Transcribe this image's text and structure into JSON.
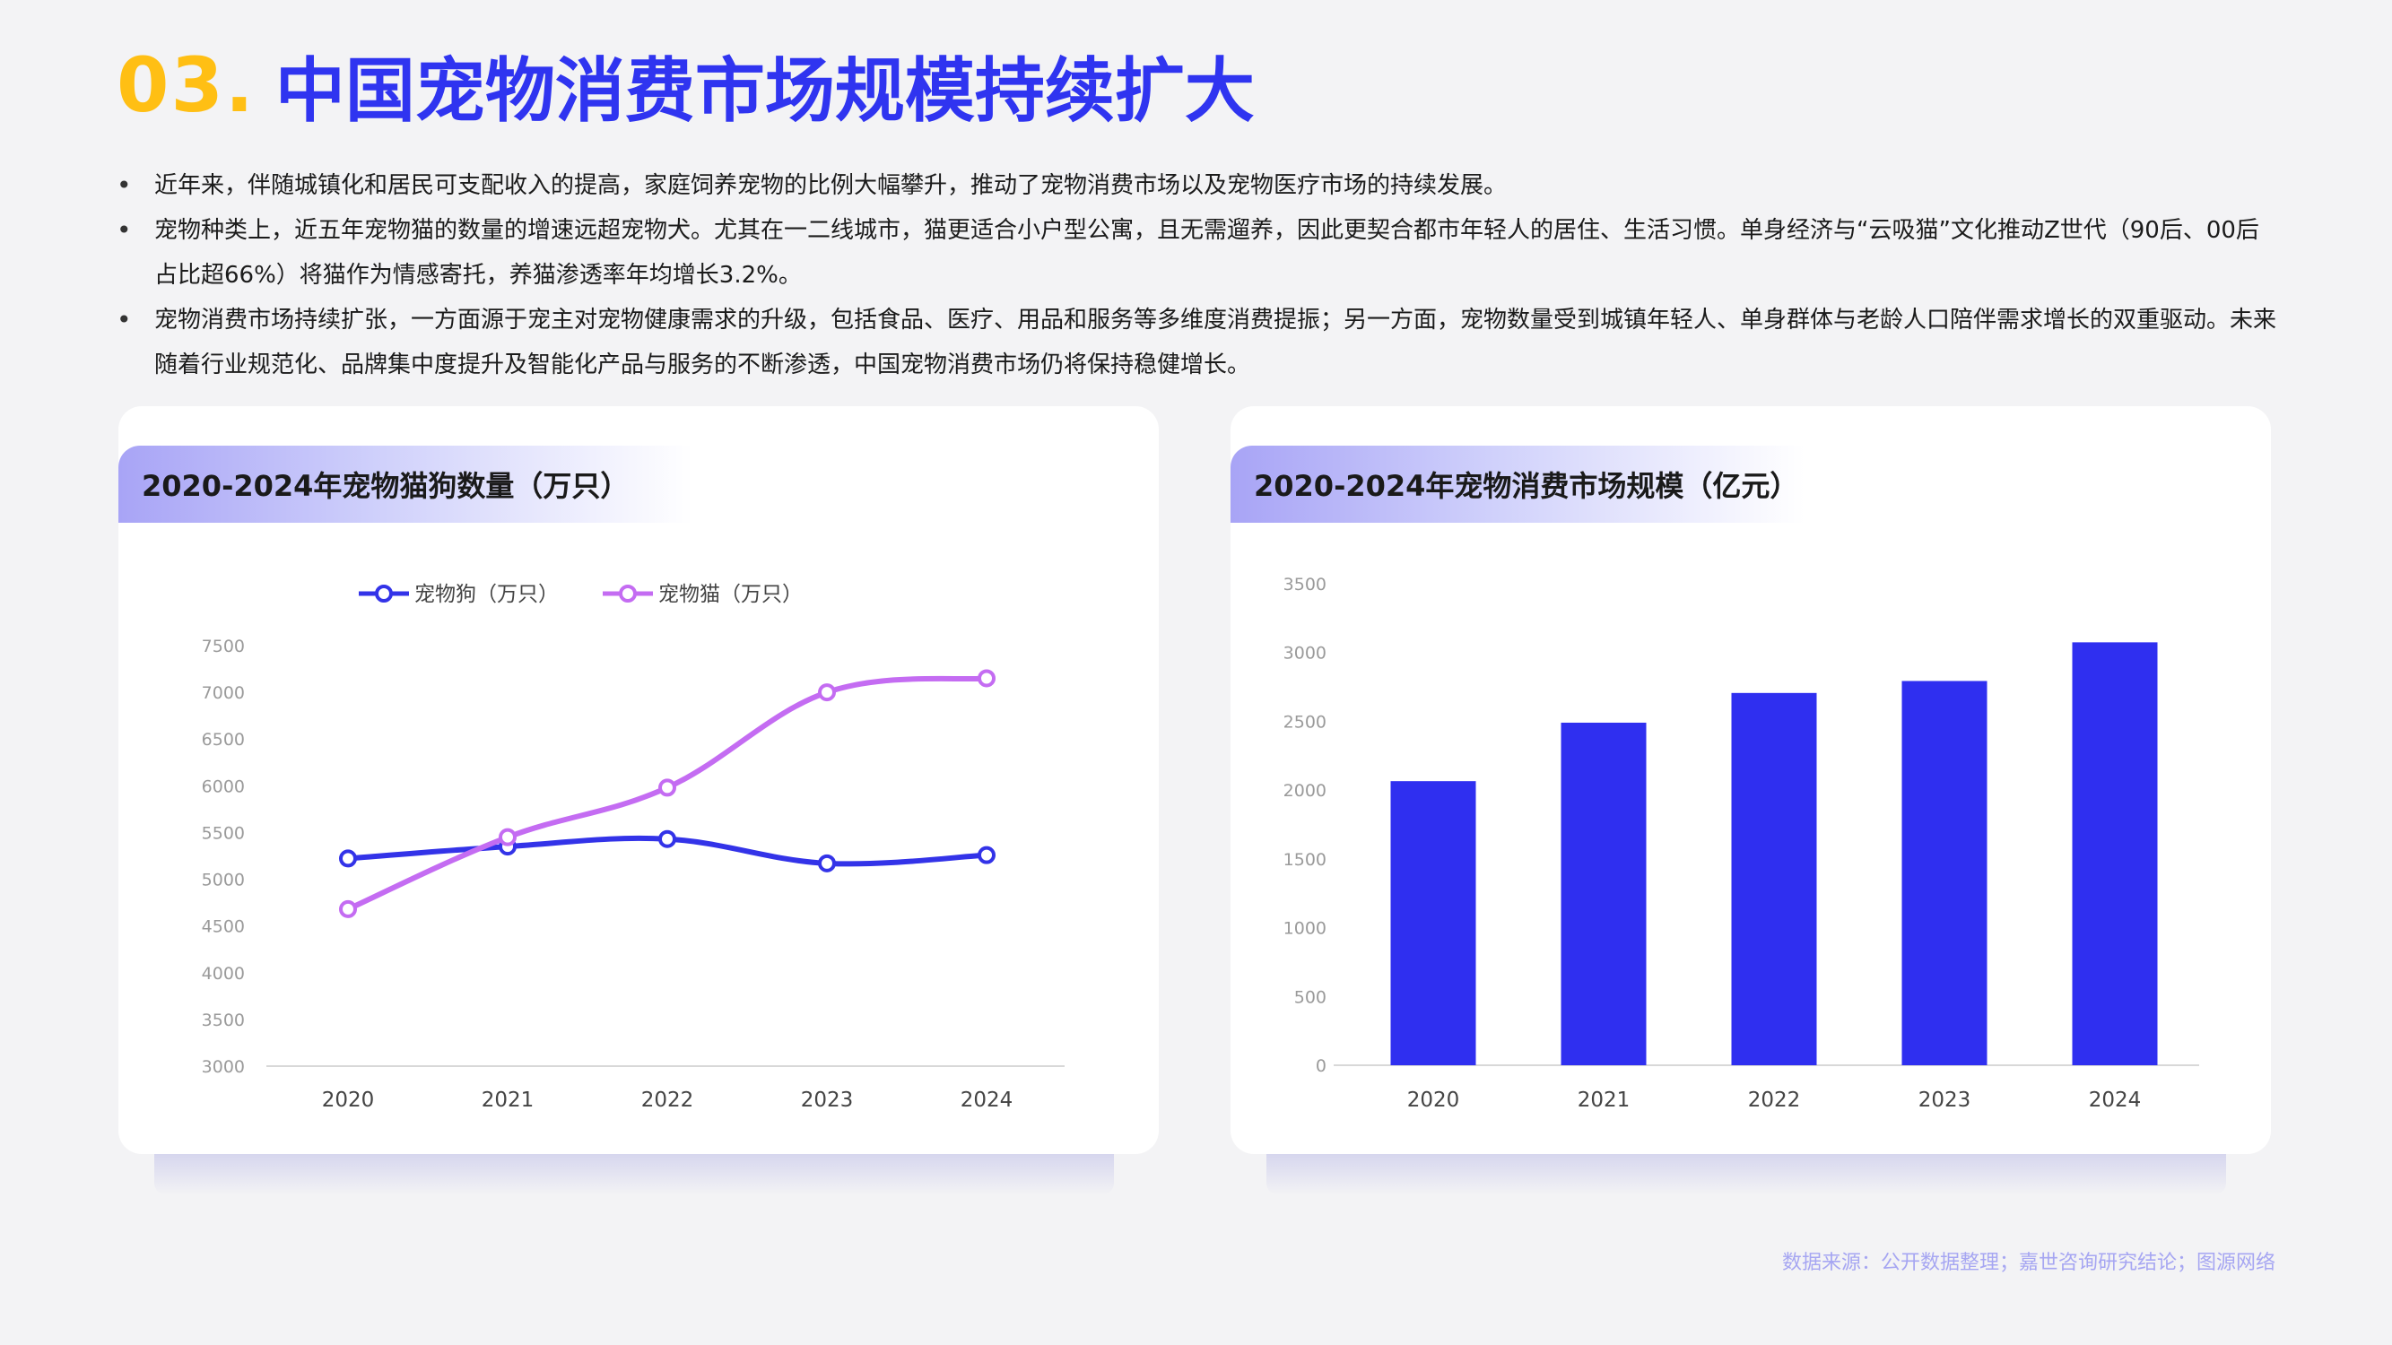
{
  "header": {
    "number": "03.",
    "title": "中国宠物消费市场规模持续扩大"
  },
  "bullets": [
    "近年来，伴随城镇化和居民可支配收入的提高，家庭饲养宠物的比例大幅攀升，推动了宠物消费市场以及宠物医疗市场的持续发展。",
    "宠物种类上，近五年宠物猫的数量的增速远超宠物犬。尤其在一二线城市，猫更适合小户型公寓，且无需遛养，因此更契合都市年轻人的居住、生活习惯。单身经济与“云吸猫”文化推动Z世代（90后、00后占比超66%）将猫作为情感寄托，养猫渗透率年均增长3.2%。",
    "宠物消费市场持续扩张，一方面源于宠主对宠物健康需求的升级，包括食品、医疗、用品和服务等多维度消费提振；另一方面，宠物数量受到城镇年轻人、单身群体与老龄人口陪伴需求增长的双重驱动。未来随着行业规范化、品牌集中度提升及智能化产品与服务的不断渗透，中国宠物消费市场仍将保持稳健增长。"
  ],
  "colors": {
    "accent_yellow": "#ffbf14",
    "title_blue": "#2f34f0",
    "dog_line": "#3333e8",
    "cat_line": "#c46cf2",
    "bar": "#2f2ff0"
  },
  "source": "数据来源：公开数据整理；嘉世咨询研究结论；图源网络",
  "chart_data": [
    {
      "type": "line",
      "title": "2020-2024年宠物猫狗数量（万只）",
      "x": [
        "2020",
        "2021",
        "2022",
        "2023",
        "2024"
      ],
      "series": [
        {
          "name": "宠物狗（万只）",
          "values": [
            5222,
            5350,
            5430,
            5170,
            5258
          ]
        },
        {
          "name": "宠物猫（万只）",
          "values": [
            4680,
            5450,
            5980,
            7000,
            7150
          ]
        }
      ],
      "ylim": [
        3000,
        7500
      ],
      "yticks": [
        3000,
        3500,
        4000,
        4500,
        5000,
        5500,
        6000,
        6500,
        7000,
        7500
      ],
      "legend": "top",
      "grid": false
    },
    {
      "type": "bar",
      "title": "2020-2024年宠物消费市场规模（亿元）",
      "categories": [
        "2020",
        "2021",
        "2022",
        "2023",
        "2024"
      ],
      "values": [
        2065,
        2490,
        2706,
        2793,
        3074
      ],
      "ylim": [
        0,
        3500
      ],
      "yticks": [
        0,
        500,
        1000,
        1500,
        2000,
        2500,
        3000,
        3500
      ],
      "grid": false
    }
  ]
}
